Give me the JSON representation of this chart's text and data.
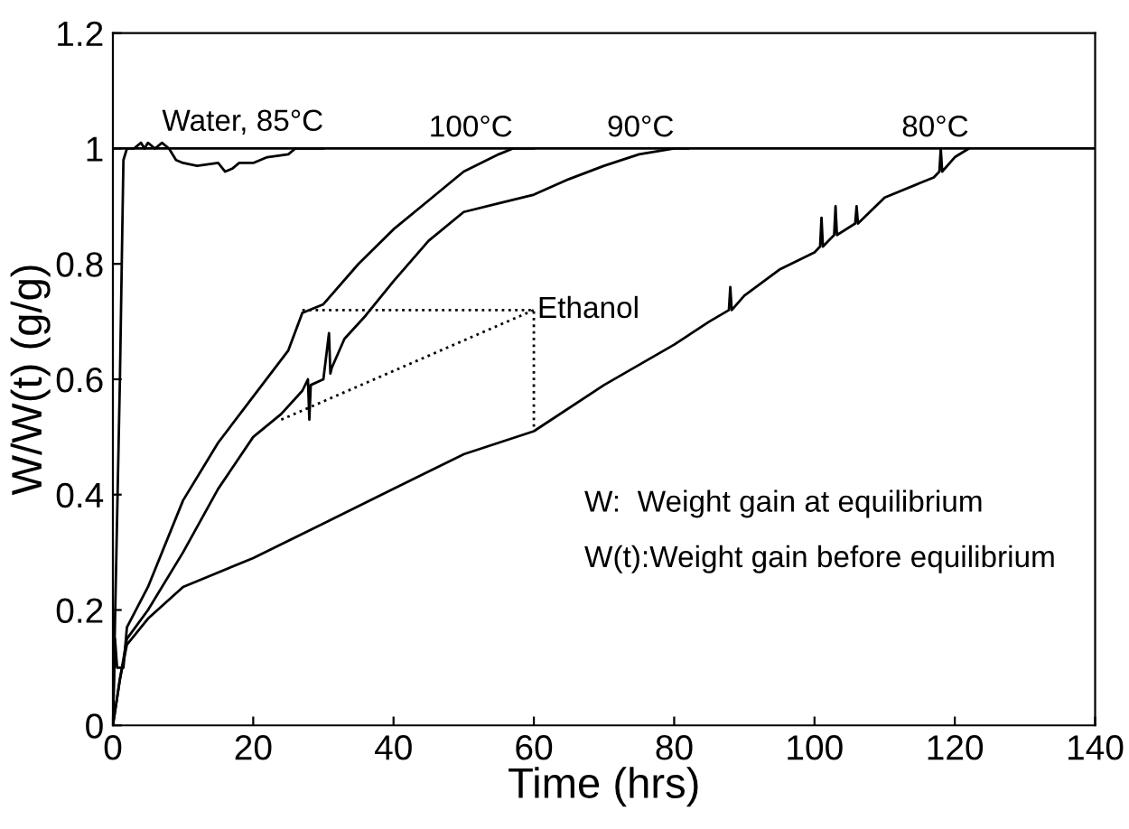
{
  "chart_data": {
    "type": "line",
    "xlabel": "Time (hrs)",
    "ylabel": "W/W(t) (g/g)",
    "xlim": [
      0,
      140
    ],
    "xticks": [
      0,
      20,
      40,
      60,
      80,
      100,
      120,
      140
    ],
    "ylim": [
      0,
      1.2
    ],
    "yticks": [
      0,
      0.2,
      0.4,
      0.6,
      0.8,
      1,
      1.2
    ],
    "grid": false,
    "legend": false,
    "marker": "none",
    "series": [
      {
        "color": "#000000",
        "line_style": "solid",
        "x": [
          0,
          0.5,
          1,
          1.5,
          2,
          3,
          4,
          4.5,
          5,
          6,
          7,
          8,
          9,
          10,
          12,
          15,
          16,
          17,
          18,
          20,
          22,
          25,
          26,
          28,
          30
        ],
        "values": [
          0,
          0.3,
          0.6,
          0.98,
          1.0,
          1.0,
          1.01,
          1.0,
          1.01,
          1.0,
          1.01,
          1.0,
          0.98,
          0.975,
          0.97,
          0.975,
          0.96,
          0.965,
          0.975,
          0.975,
          0.985,
          0.99,
          1.0,
          1.0,
          1.0
        ]
      },
      {
        "color": "#000000",
        "line_style": "solid",
        "x": [
          0,
          0.3,
          0.6,
          1.5,
          2,
          5,
          10,
          15,
          20,
          25,
          27,
          30,
          35,
          40,
          45,
          50,
          55,
          57,
          60
        ],
        "values": [
          0,
          0.15,
          0.1,
          0.1,
          0.17,
          0.24,
          0.39,
          0.49,
          0.57,
          0.65,
          0.715,
          0.73,
          0.8,
          0.86,
          0.91,
          0.96,
          0.99,
          1.0,
          1.0
        ]
      },
      {
        "color": "#000000",
        "line_style": "solid",
        "x": [
          0,
          1,
          2,
          5,
          10,
          15,
          20,
          24,
          27,
          27.8,
          28,
          28.2,
          30,
          30.8,
          31,
          31.2,
          33,
          36,
          40,
          45,
          50,
          55,
          60,
          65,
          70,
          75,
          80,
          82
        ],
        "values": [
          0,
          0.08,
          0.15,
          0.2,
          0.3,
          0.41,
          0.5,
          0.54,
          0.58,
          0.6,
          0.53,
          0.59,
          0.6,
          0.68,
          0.61,
          0.62,
          0.67,
          0.71,
          0.77,
          0.84,
          0.89,
          0.905,
          0.92,
          0.947,
          0.97,
          0.99,
          1.0,
          1.0
        ]
      },
      {
        "color": "#000000",
        "line_style": "solid",
        "x": [
          0,
          1,
          2,
          5,
          10,
          20,
          30,
          40,
          50,
          60,
          70,
          80,
          85,
          87.8,
          88,
          88.2,
          90,
          95,
          100,
          100.8,
          101,
          101.2,
          102.8,
          103,
          103.2,
          105.8,
          106,
          106.2,
          110,
          115,
          117,
          117.8,
          118,
          118.2,
          120,
          122
        ],
        "values": [
          0,
          0.08,
          0.14,
          0.185,
          0.24,
          0.29,
          0.35,
          0.41,
          0.47,
          0.51,
          0.59,
          0.66,
          0.7,
          0.72,
          0.76,
          0.72,
          0.745,
          0.79,
          0.82,
          0.83,
          0.88,
          0.83,
          0.85,
          0.9,
          0.85,
          0.87,
          0.9,
          0.87,
          0.915,
          0.94,
          0.95,
          0.96,
          1.0,
          0.96,
          0.985,
          1.0
        ]
      },
      {
        "color": "#000000",
        "line_style": "dotted",
        "x": [
          27,
          60,
          60
        ],
        "values": [
          0.72,
          0.72,
          0.51
        ]
      },
      {
        "color": "#000000",
        "line_style": "dotted",
        "x": [
          24,
          60
        ],
        "values": [
          0.53,
          0.72
        ]
      }
    ],
    "ref_lines": [
      {
        "axis": "y",
        "value": 1,
        "color": "#000000",
        "line_style": "solid"
      }
    ],
    "annotations": [
      {
        "text": "Water, 85°C",
        "x": 7,
        "y": 1.01
      },
      {
        "text": "100°C",
        "x": 57,
        "y": 1.0
      },
      {
        "text": "90°C",
        "x": 80,
        "y": 1.0
      },
      {
        "text": "80°C",
        "x": 122,
        "y": 1.0
      },
      {
        "text": "Ethanol",
        "x": 60.5,
        "y": 0.72
      },
      "W:  Weight gain at equilibrium",
      "W(t):Weight gain before equilibrium"
    ]
  }
}
